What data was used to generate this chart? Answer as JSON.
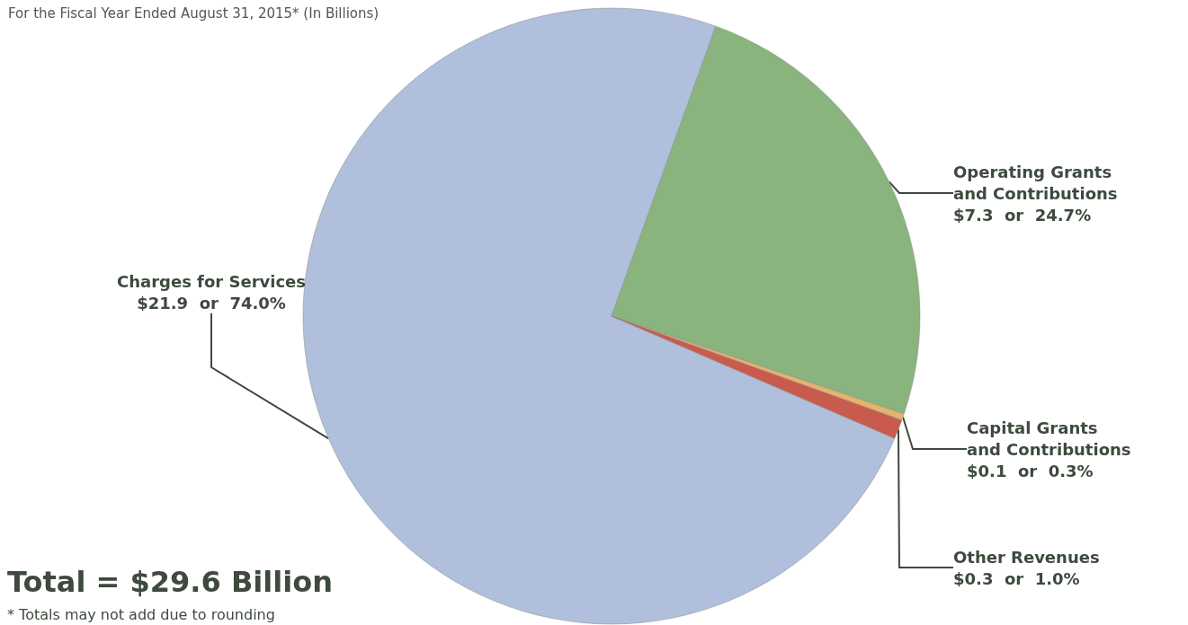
{
  "chart_data": {
    "type": "pie",
    "subtitle": "For the Fiscal Year Ended August 31, 2015* (In Billions)",
    "categories": [
      "Charges for Services",
      "Operating Grants and Contributions",
      "Capital Grants and Contributions",
      "Other Revenues"
    ],
    "values": [
      21.9,
      7.3,
      0.1,
      0.3
    ],
    "value_labels": [
      "$21.9  or  74.0%",
      "$7.3  or  24.7%",
      "$0.1  or  0.3%",
      "$0.3  or  1.0%"
    ],
    "colors": [
      "#b0bfdb",
      "#8ab47d",
      "#e7b36c",
      "#c95b4d"
    ],
    "annotations": [
      "Total = $29.6 Billion",
      "* Totals may not add due to rounding"
    ],
    "legend": false
  }
}
